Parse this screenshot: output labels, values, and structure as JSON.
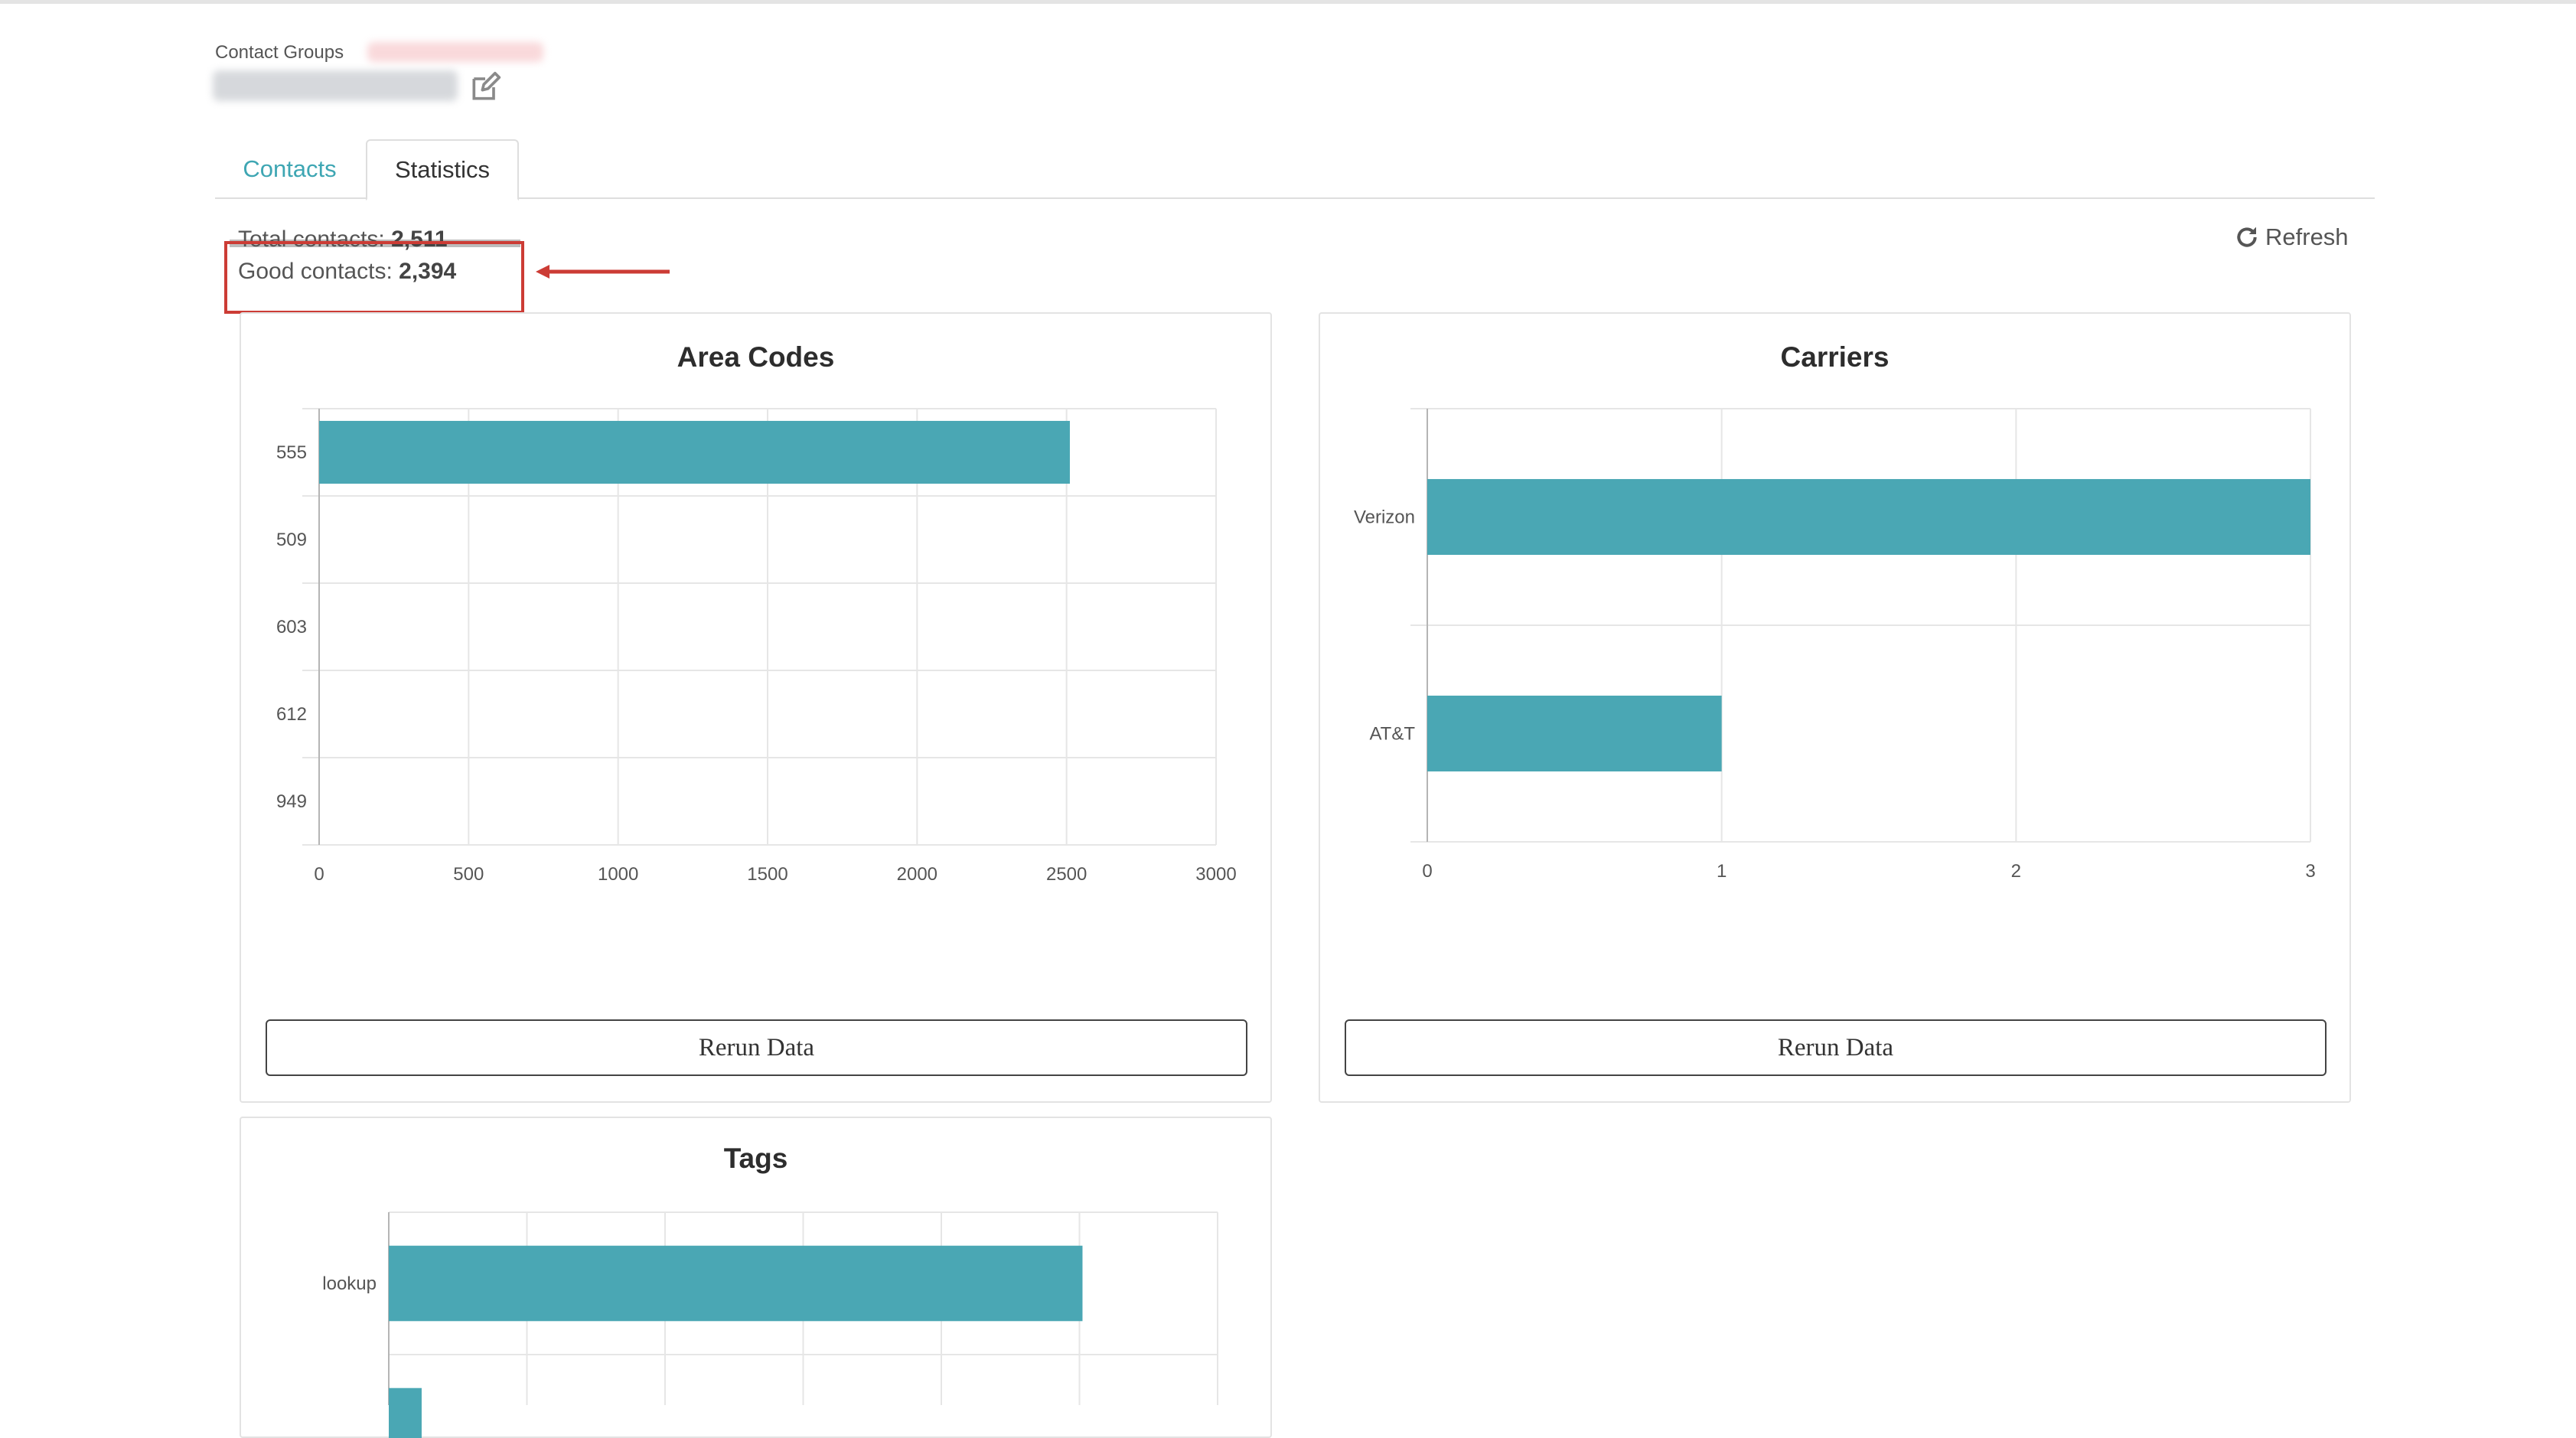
{
  "header": {
    "breadcrumb_label": "Contact Groups",
    "edit_icon": "edit-icon"
  },
  "tabs": [
    {
      "label": "Contacts",
      "active": false
    },
    {
      "label": "Statistics",
      "active": true
    }
  ],
  "stats": {
    "total_label": "Total contacts:",
    "total_value": "2,511",
    "good_label": "Good contacts:",
    "good_value": "2,394"
  },
  "refresh": {
    "label": "Refresh",
    "icon": "refresh-icon"
  },
  "rerun_label": "Rerun Data",
  "colors": {
    "bar": "#4aa7b4",
    "accent": "#3ea6b3",
    "highlight": "#cc3c35"
  },
  "chart_data": [
    {
      "type": "bar",
      "orientation": "horizontal",
      "title": "Area Codes",
      "categories": [
        "555",
        "509",
        "603",
        "612",
        "949"
      ],
      "values": [
        2511,
        0,
        0,
        0,
        0
      ],
      "xlim": [
        0,
        3000
      ],
      "xticks": [
        "0",
        "500",
        "1000",
        "1500",
        "2000",
        "2500",
        "3000"
      ],
      "grid": true
    },
    {
      "type": "bar",
      "orientation": "horizontal",
      "title": "Carriers",
      "categories": [
        "Verizon",
        "AT&T"
      ],
      "values": [
        3,
        1
      ],
      "xlim": [
        0,
        3
      ],
      "xticks": [
        "0",
        "1",
        "2",
        "3"
      ],
      "grid": true
    },
    {
      "type": "bar",
      "orientation": "horizontal",
      "title": "Tags",
      "categories": [
        "lookup",
        ""
      ],
      "values": [
        2511,
        119
      ],
      "xlim": [
        0,
        3000
      ],
      "grid": true
    }
  ]
}
